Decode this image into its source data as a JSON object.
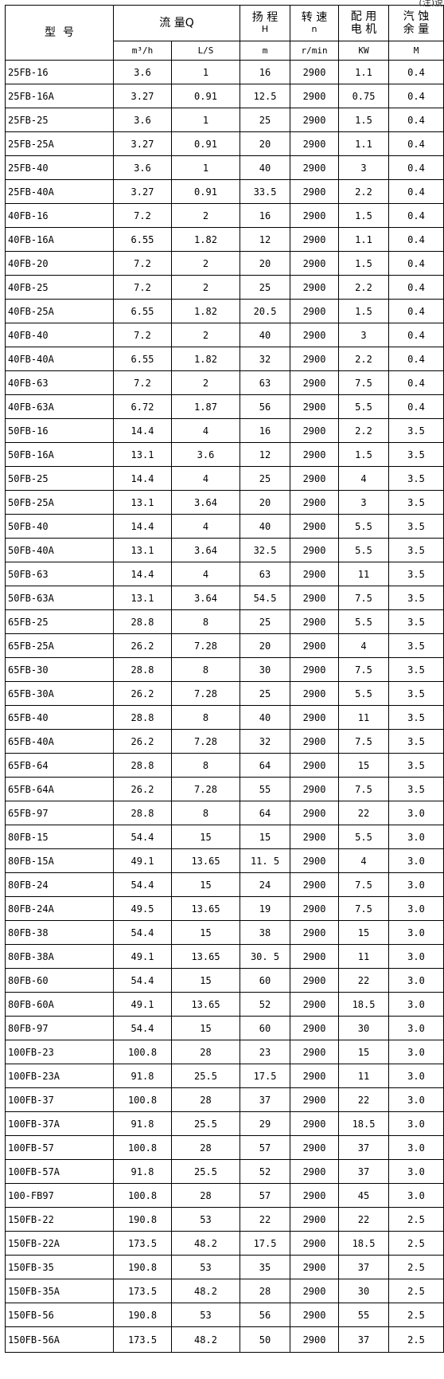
{
  "corner_note": "(注)说明",
  "header": {
    "model": "型  号",
    "flow": "流 量Q",
    "head_top": "扬 程",
    "head_bot": "H",
    "speed_top": "转 速",
    "speed_bot": "n",
    "motor_top": "配 用",
    "motor_bot": "电 机",
    "npsh_top": "汽 蚀",
    "npsh_bot": "余 量"
  },
  "units": [
    "m³/h",
    "L/S",
    "m",
    "r/min",
    "KW",
    "M"
  ],
  "rows": [
    [
      "25FB-16",
      "3.6",
      "1",
      "16",
      "2900",
      "1.1",
      "0.4"
    ],
    [
      "25FB-16A",
      "3.27",
      "0.91",
      "12.5",
      "2900",
      "0.75",
      "0.4"
    ],
    [
      "25FB-25",
      "3.6",
      "1",
      "25",
      "2900",
      "1.5",
      "0.4"
    ],
    [
      "25FB-25A",
      "3.27",
      "0.91",
      "20",
      "2900",
      "1.1",
      "0.4"
    ],
    [
      "25FB-40",
      "3.6",
      "1",
      "40",
      "2900",
      "3",
      "0.4"
    ],
    [
      "25FB-40A",
      "3.27",
      "0.91",
      "33.5",
      "2900",
      "2.2",
      "0.4"
    ],
    [
      "40FB-16",
      "7.2",
      "2",
      "16",
      "2900",
      "1.5",
      "0.4"
    ],
    [
      "40FB-16A",
      "6.55",
      "1.82",
      "12",
      "2900",
      "1.1",
      "0.4"
    ],
    [
      "40FB-20",
      "7.2",
      "2",
      "20",
      "2900",
      "1.5",
      "0.4"
    ],
    [
      "40FB-25",
      "7.2",
      "2",
      "25",
      "2900",
      "2.2",
      "0.4"
    ],
    [
      "40FB-25A",
      "6.55",
      "1.82",
      "20.5",
      "2900",
      "1.5",
      "0.4"
    ],
    [
      "40FB-40",
      "7.2",
      "2",
      "40",
      "2900",
      "3",
      "0.4"
    ],
    [
      "40FB-40A",
      "6.55",
      "1.82",
      "32",
      "2900",
      "2.2",
      "0.4"
    ],
    [
      "40FB-63",
      "7.2",
      "2",
      "63",
      "2900",
      "7.5",
      "0.4"
    ],
    [
      "40FB-63A",
      "6.72",
      "1.87",
      "56",
      "2900",
      "5.5",
      "0.4"
    ],
    [
      "50FB-16",
      "14.4",
      "4",
      "16",
      "2900",
      "2.2",
      "3.5"
    ],
    [
      "50FB-16A",
      "13.1",
      "3.6",
      "12",
      "2900",
      "1.5",
      "3.5"
    ],
    [
      "50FB-25",
      "14.4",
      "4",
      "25",
      "2900",
      "4",
      "3.5"
    ],
    [
      "50FB-25A",
      "13.1",
      "3.64",
      "20",
      "2900",
      "3",
      "3.5"
    ],
    [
      "50FB-40",
      "14.4",
      "4",
      "40",
      "2900",
      "5.5",
      "3.5"
    ],
    [
      "50FB-40A",
      "13.1",
      "3.64",
      "32.5",
      "2900",
      "5.5",
      "3.5"
    ],
    [
      "50FB-63",
      "14.4",
      "4",
      "63",
      "2900",
      "11",
      "3.5"
    ],
    [
      "50FB-63A",
      "13.1",
      "3.64",
      "54.5",
      "2900",
      "7.5",
      "3.5"
    ],
    [
      "65FB-25",
      "28.8",
      "8",
      "25",
      "2900",
      "5.5",
      "3.5"
    ],
    [
      "65FB-25A",
      "26.2",
      "7.28",
      "20",
      "2900",
      "4",
      "3.5"
    ],
    [
      "65FB-30",
      "28.8",
      "8",
      "30",
      "2900",
      "7.5",
      "3.5"
    ],
    [
      "65FB-30A",
      "26.2",
      "7.28",
      "25",
      "2900",
      "5.5",
      "3.5"
    ],
    [
      "65FB-40",
      "28.8",
      "8",
      "40",
      "2900",
      "11",
      "3.5"
    ],
    [
      "65FB-40A",
      "26.2",
      "7.28",
      "32",
      "2900",
      "7.5",
      "3.5"
    ],
    [
      "65FB-64",
      "28.8",
      "8",
      "64",
      "2900",
      "15",
      "3.5"
    ],
    [
      "65FB-64A",
      "26.2",
      "7.28",
      "55",
      "2900",
      "7.5",
      "3.5"
    ],
    [
      "65FB-97",
      "28.8",
      "8",
      "64",
      "2900",
      "22",
      "3.0"
    ],
    [
      "80FB-15",
      "54.4",
      "15",
      "15",
      "2900",
      "5.5",
      "3.0"
    ],
    [
      "80FB-15A",
      "49.1",
      "13.65",
      "11. 5",
      "2900",
      "4",
      "3.0"
    ],
    [
      "80FB-24",
      "54.4",
      "15",
      "24",
      "2900",
      "7.5",
      "3.0"
    ],
    [
      "80FB-24A",
      "49.5",
      "13.65",
      "19",
      "2900",
      "7.5",
      "3.0"
    ],
    [
      "80FB-38",
      "54.4",
      "15",
      "38",
      "2900",
      "15",
      "3.0"
    ],
    [
      "80FB-38A",
      "49.1",
      "13.65",
      "30. 5",
      "2900",
      "11",
      "3.0"
    ],
    [
      "80FB-60",
      "54.4",
      "15",
      "60",
      "2900",
      "22",
      "3.0"
    ],
    [
      "80FB-60A",
      "49.1",
      "13.65",
      "52",
      "2900",
      "18.5",
      "3.0"
    ],
    [
      "80FB-97",
      "54.4",
      "15",
      "60",
      "2900",
      "30",
      "3.0"
    ],
    [
      "100FB-23",
      "100.8",
      "28",
      "23",
      "2900",
      "15",
      "3.0"
    ],
    [
      "100FB-23A",
      "91.8",
      "25.5",
      "17.5",
      "2900",
      "11",
      "3.0"
    ],
    [
      "100FB-37",
      "100.8",
      "28",
      "37",
      "2900",
      "22",
      "3.0"
    ],
    [
      "100FB-37A",
      "91.8",
      "25.5",
      "29",
      "2900",
      "18.5",
      "3.0"
    ],
    [
      "100FB-57",
      "100.8",
      "28",
      "57",
      "2900",
      "37",
      "3.0"
    ],
    [
      "100FB-57A",
      "91.8",
      "25.5",
      "52",
      "2900",
      "37",
      "3.0"
    ],
    [
      "100-FB97",
      "100.8",
      "28",
      "57",
      "2900",
      "45",
      "3.0"
    ],
    [
      "150FB-22",
      "190.8",
      "53",
      "22",
      "2900",
      "22",
      "2.5"
    ],
    [
      "150FB-22A",
      "173.5",
      "48.2",
      "17.5",
      "2900",
      "18.5",
      "2.5"
    ],
    [
      "150FB-35",
      "190.8",
      "53",
      "35",
      "2900",
      "37",
      "2.5"
    ],
    [
      "150FB-35A",
      "173.5",
      "48.2",
      "28",
      "2900",
      "30",
      "2.5"
    ],
    [
      "150FB-56",
      "190.8",
      "53",
      "56",
      "2900",
      "55",
      "2.5"
    ],
    [
      "150FB-56A",
      "173.5",
      "48.2",
      "50",
      "2900",
      "37",
      "2.5"
    ]
  ]
}
